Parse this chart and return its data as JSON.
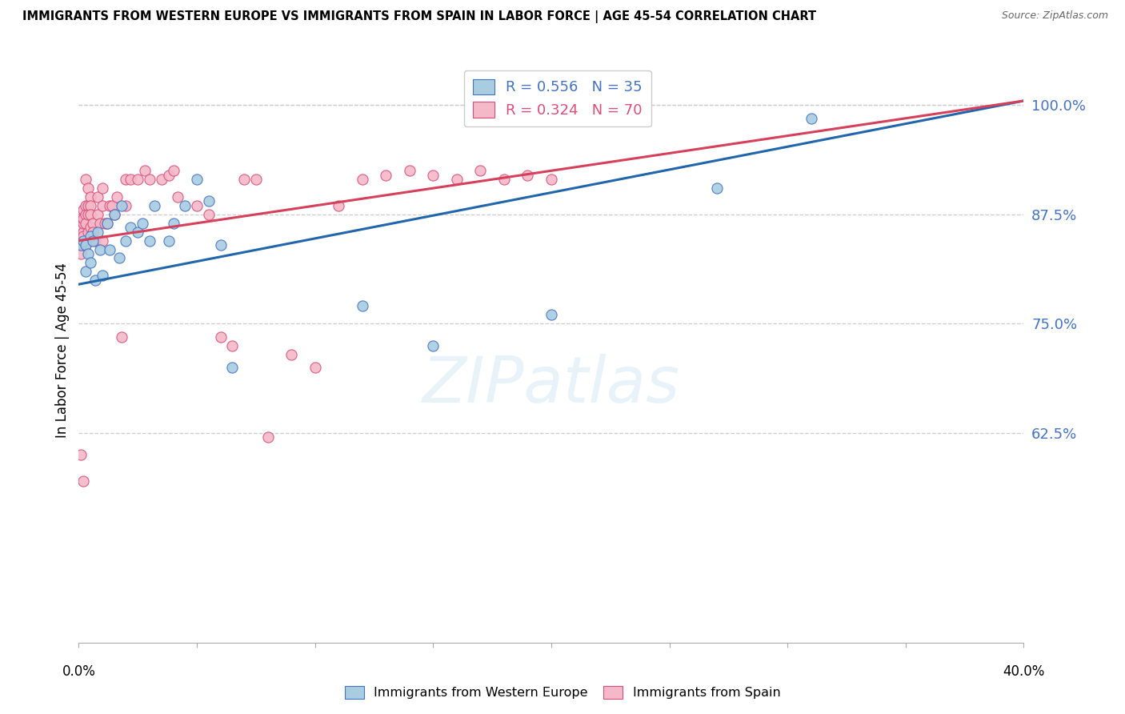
{
  "title": "IMMIGRANTS FROM WESTERN EUROPE VS IMMIGRANTS FROM SPAIN IN LABOR FORCE | AGE 45-54 CORRELATION CHART",
  "source": "Source: ZipAtlas.com",
  "ylabel": "In Labor Force | Age 45-54",
  "ylabel_tick_vals": [
    1.0,
    0.875,
    0.75,
    0.625
  ],
  "xmin": 0.0,
  "xmax": 0.4,
  "ymin": 0.385,
  "ymax": 1.055,
  "blue_color": "#a8cce0",
  "pink_color": "#f4b8c8",
  "blue_edge_color": "#4472c4",
  "pink_edge_color": "#d94f7a",
  "blue_line_color": "#2166ac",
  "pink_line_color": "#d6405a",
  "legend_blue_label": "R = 0.556   N = 35",
  "legend_pink_label": "R = 0.324   N = 70",
  "blue_line_x0": 0.0,
  "blue_line_y0": 0.795,
  "blue_line_x1": 0.4,
  "blue_line_y1": 1.005,
  "pink_line_x0": 0.0,
  "pink_line_y0": 0.845,
  "pink_line_x1": 0.4,
  "pink_line_y1": 1.005,
  "blue_points_x": [
    0.001,
    0.002,
    0.003,
    0.003,
    0.004,
    0.005,
    0.005,
    0.006,
    0.007,
    0.008,
    0.009,
    0.01,
    0.012,
    0.013,
    0.015,
    0.017,
    0.018,
    0.02,
    0.022,
    0.025,
    0.027,
    0.03,
    0.032,
    0.038,
    0.04,
    0.045,
    0.05,
    0.055,
    0.06,
    0.065,
    0.12,
    0.15,
    0.2,
    0.27,
    0.31
  ],
  "blue_points_y": [
    0.84,
    0.845,
    0.84,
    0.81,
    0.83,
    0.85,
    0.82,
    0.845,
    0.8,
    0.855,
    0.835,
    0.805,
    0.865,
    0.835,
    0.875,
    0.825,
    0.885,
    0.845,
    0.86,
    0.855,
    0.865,
    0.845,
    0.885,
    0.845,
    0.865,
    0.885,
    0.915,
    0.89,
    0.84,
    0.7,
    0.77,
    0.725,
    0.76,
    0.905,
    0.985
  ],
  "pink_points_x": [
    0.001,
    0.001,
    0.001,
    0.001,
    0.001,
    0.002,
    0.002,
    0.002,
    0.002,
    0.002,
    0.002,
    0.002,
    0.003,
    0.003,
    0.003,
    0.003,
    0.003,
    0.004,
    0.004,
    0.004,
    0.004,
    0.005,
    0.005,
    0.005,
    0.005,
    0.006,
    0.006,
    0.007,
    0.008,
    0.008,
    0.009,
    0.01,
    0.01,
    0.01,
    0.011,
    0.012,
    0.013,
    0.014,
    0.015,
    0.016,
    0.018,
    0.02,
    0.02,
    0.022,
    0.025,
    0.028,
    0.03,
    0.035,
    0.038,
    0.04,
    0.042,
    0.05,
    0.055,
    0.06,
    0.065,
    0.07,
    0.075,
    0.08,
    0.09,
    0.1,
    0.11,
    0.12,
    0.13,
    0.14,
    0.15,
    0.16,
    0.17,
    0.18,
    0.19,
    0.2
  ],
  "pink_points_y": [
    0.84,
    0.83,
    0.87,
    0.86,
    0.6,
    0.84,
    0.855,
    0.865,
    0.87,
    0.88,
    0.85,
    0.57,
    0.84,
    0.915,
    0.885,
    0.875,
    0.865,
    0.905,
    0.885,
    0.875,
    0.855,
    0.86,
    0.895,
    0.885,
    0.875,
    0.865,
    0.855,
    0.845,
    0.895,
    0.875,
    0.865,
    0.905,
    0.885,
    0.845,
    0.865,
    0.865,
    0.885,
    0.885,
    0.875,
    0.895,
    0.735,
    0.915,
    0.885,
    0.915,
    0.915,
    0.925,
    0.915,
    0.915,
    0.92,
    0.925,
    0.895,
    0.885,
    0.875,
    0.735,
    0.725,
    0.915,
    0.915,
    0.62,
    0.715,
    0.7,
    0.885,
    0.915,
    0.92,
    0.925,
    0.92,
    0.915,
    0.925,
    0.915,
    0.92,
    0.915
  ]
}
